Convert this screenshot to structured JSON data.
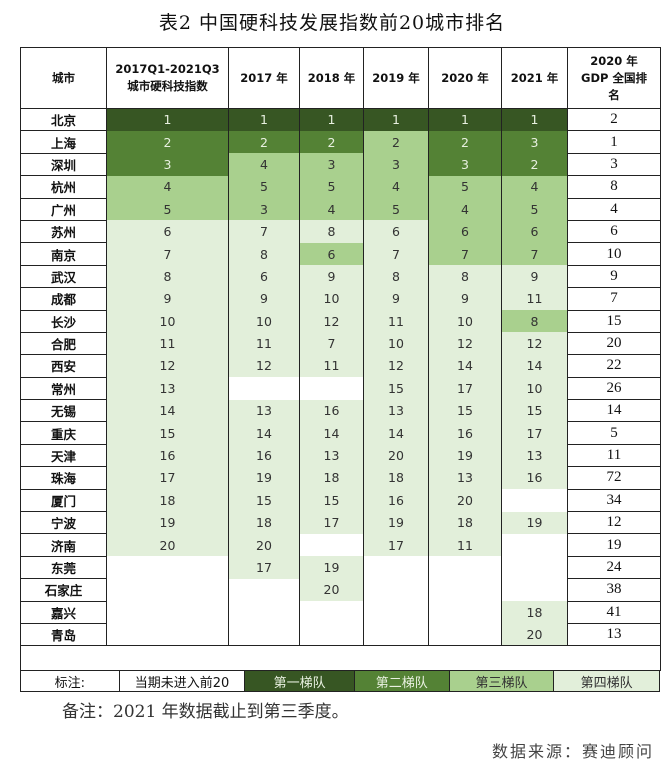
{
  "title": "表2 中国硬科技发展指数前20城市排名",
  "headers": [
    "城市",
    "2017Q1-2021Q3\n城市硬科技指数",
    "2017 年",
    "2018 年",
    "2019 年",
    "2020 年",
    "2021 年",
    "2020 年\nGDP 全国排\n名"
  ],
  "tier_colors": {
    "0": "#ffffff",
    "1": "#375623",
    "2": "#548235",
    "3": "#a9d08e",
    "4": "#e2efda"
  },
  "rows": [
    {
      "city": "北京",
      "values": [
        "1",
        "1",
        "1",
        "1",
        "1",
        "1"
      ],
      "tiers": [
        1,
        1,
        1,
        1,
        1,
        1
      ],
      "gdp": "2"
    },
    {
      "city": "上海",
      "values": [
        "2",
        "2",
        "2",
        "2",
        "2",
        "3"
      ],
      "tiers": [
        2,
        2,
        2,
        3,
        2,
        2
      ],
      "gdp": "1"
    },
    {
      "city": "深圳",
      "values": [
        "3",
        "4",
        "3",
        "3",
        "3",
        "2"
      ],
      "tiers": [
        2,
        3,
        3,
        3,
        2,
        2
      ],
      "gdp": "3"
    },
    {
      "city": "杭州",
      "values": [
        "4",
        "5",
        "5",
        "4",
        "5",
        "4"
      ],
      "tiers": [
        3,
        3,
        3,
        3,
        3,
        3
      ],
      "gdp": "8"
    },
    {
      "city": "广州",
      "values": [
        "5",
        "3",
        "4",
        "5",
        "4",
        "5"
      ],
      "tiers": [
        3,
        3,
        3,
        3,
        3,
        3
      ],
      "gdp": "4"
    },
    {
      "city": "苏州",
      "values": [
        "6",
        "7",
        "8",
        "6",
        "6",
        "6"
      ],
      "tiers": [
        4,
        4,
        4,
        4,
        3,
        3
      ],
      "gdp": "6"
    },
    {
      "city": "南京",
      "values": [
        "7",
        "8",
        "6",
        "7",
        "7",
        "7"
      ],
      "tiers": [
        4,
        4,
        3,
        4,
        3,
        3
      ],
      "gdp": "10"
    },
    {
      "city": "武汉",
      "values": [
        "8",
        "6",
        "9",
        "8",
        "8",
        "9"
      ],
      "tiers": [
        4,
        4,
        4,
        4,
        4,
        4
      ],
      "gdp": "9"
    },
    {
      "city": "成都",
      "values": [
        "9",
        "9",
        "10",
        "9",
        "9",
        "11"
      ],
      "tiers": [
        4,
        4,
        4,
        4,
        4,
        4
      ],
      "gdp": "7"
    },
    {
      "city": "长沙",
      "values": [
        "10",
        "10",
        "12",
        "11",
        "10",
        "8"
      ],
      "tiers": [
        4,
        4,
        4,
        4,
        4,
        3
      ],
      "gdp": "15"
    },
    {
      "city": "合肥",
      "values": [
        "11",
        "11",
        "7",
        "10",
        "12",
        "12"
      ],
      "tiers": [
        4,
        4,
        4,
        4,
        4,
        4
      ],
      "gdp": "20"
    },
    {
      "city": "西安",
      "values": [
        "12",
        "12",
        "11",
        "12",
        "14",
        "14"
      ],
      "tiers": [
        4,
        4,
        4,
        4,
        4,
        4
      ],
      "gdp": "22"
    },
    {
      "city": "常州",
      "values": [
        "13",
        "",
        "",
        "15",
        "17",
        "10"
      ],
      "tiers": [
        4,
        0,
        0,
        4,
        4,
        4
      ],
      "gdp": "26"
    },
    {
      "city": "无锡",
      "values": [
        "14",
        "13",
        "16",
        "13",
        "15",
        "15"
      ],
      "tiers": [
        4,
        4,
        4,
        4,
        4,
        4
      ],
      "gdp": "14"
    },
    {
      "city": "重庆",
      "values": [
        "15",
        "14",
        "14",
        "14",
        "16",
        "17"
      ],
      "tiers": [
        4,
        4,
        4,
        4,
        4,
        4
      ],
      "gdp": "5"
    },
    {
      "city": "天津",
      "values": [
        "16",
        "16",
        "13",
        "20",
        "19",
        "13"
      ],
      "tiers": [
        4,
        4,
        4,
        4,
        4,
        4
      ],
      "gdp": "11"
    },
    {
      "city": "珠海",
      "values": [
        "17",
        "19",
        "18",
        "18",
        "13",
        "16"
      ],
      "tiers": [
        4,
        4,
        4,
        4,
        4,
        4
      ],
      "gdp": "72"
    },
    {
      "city": "厦门",
      "values": [
        "18",
        "15",
        "15",
        "16",
        "20",
        ""
      ],
      "tiers": [
        4,
        4,
        4,
        4,
        4,
        0
      ],
      "gdp": "34"
    },
    {
      "city": "宁波",
      "values": [
        "19",
        "18",
        "17",
        "19",
        "18",
        "19"
      ],
      "tiers": [
        4,
        4,
        4,
        4,
        4,
        4
      ],
      "gdp": "12"
    },
    {
      "city": "济南",
      "values": [
        "20",
        "20",
        "",
        "17",
        "11",
        ""
      ],
      "tiers": [
        4,
        4,
        0,
        4,
        4,
        0
      ],
      "gdp": "19"
    },
    {
      "city": "东莞",
      "values": [
        "",
        "17",
        "19",
        "",
        "",
        ""
      ],
      "tiers": [
        0,
        4,
        4,
        0,
        0,
        0
      ],
      "gdp": "24"
    },
    {
      "city": "石家庄",
      "values": [
        "",
        "",
        "20",
        "",
        "",
        ""
      ],
      "tiers": [
        0,
        0,
        4,
        0,
        0,
        0
      ],
      "gdp": "38"
    },
    {
      "city": "嘉兴",
      "values": [
        "",
        "",
        "",
        "",
        "",
        "18"
      ],
      "tiers": [
        0,
        0,
        0,
        0,
        0,
        4
      ],
      "gdp": "41"
    },
    {
      "city": "青岛",
      "values": [
        "",
        "",
        "",
        "",
        "",
        "20"
      ],
      "tiers": [
        0,
        0,
        0,
        0,
        0,
        4
      ],
      "gdp": "13"
    }
  ],
  "legend": {
    "label": "标注:",
    "items": [
      {
        "label": "当期未进入前20",
        "tier": 0
      },
      {
        "label": "第一梯队",
        "tier": 1
      },
      {
        "label": "第二梯队",
        "tier": 2
      },
      {
        "label": "第三梯队",
        "tier": 3
      },
      {
        "label": "第四梯队",
        "tier": 4
      }
    ]
  },
  "note": "备注：2021 年数据截止到第三季度。",
  "source": "数据来源：赛迪顾问"
}
